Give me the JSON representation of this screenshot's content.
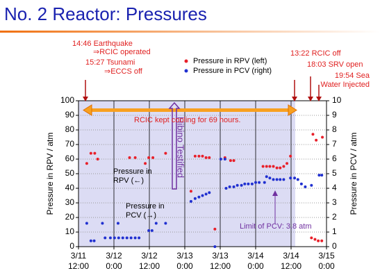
{
  "chart_data": {
    "type": "scatter",
    "title": "No. 2 Reactor:  Pressures",
    "y_label": "Pressure in RPV / atm",
    "y2_label": "Pressure in PCV / atm",
    "xlim": [
      0,
      84
    ],
    "xticks": [
      {
        "value": 0,
        "label": "3/11 12:00"
      },
      {
        "value": 12,
        "label": "3/12 0:00"
      },
      {
        "value": 24,
        "label": "3/12 12:00"
      },
      {
        "value": 36,
        "label": "3/13 0:00"
      },
      {
        "value": 48,
        "label": "3/13 12:00"
      },
      {
        "value": 60,
        "label": "3/14 0:00"
      },
      {
        "value": 72,
        "label": "3/14 12:00"
      },
      {
        "value": 84,
        "label": "3/15 0:00"
      }
    ],
    "ylim": [
      0,
      100
    ],
    "yticks": [
      0,
      10,
      20,
      30,
      40,
      50,
      60,
      70,
      80,
      90,
      100
    ],
    "y2lim": [
      0,
      10
    ],
    "y2ticks": [
      0,
      1,
      2,
      3,
      4,
      5,
      6,
      7,
      8,
      9,
      10
    ],
    "grid": true,
    "series": [
      {
        "name": "Pressure in RPV (left)",
        "color": "#e8202a",
        "x": [
          2.8,
          4.2,
          5.5,
          6.5,
          17.3,
          19.2,
          22.6,
          23.8,
          25.2,
          29.5,
          38.1,
          39.5,
          40.8,
          42,
          43.2,
          44.3,
          46.2,
          49.6,
          51.5,
          52.6,
          62.5,
          63.7,
          64.8,
          66,
          67.2,
          68.3,
          69.5,
          70.6,
          71.8,
          79.4,
          80.5,
          82.6,
          78.9,
          80.1,
          81.2,
          82.4
        ],
        "values": [
          57,
          64,
          64,
          60,
          61,
          61,
          57,
          61,
          61,
          64,
          38,
          62,
          62,
          62,
          61,
          61,
          12,
          61,
          59,
          59,
          55,
          55,
          55,
          55,
          54,
          54,
          55,
          57,
          62,
          77,
          73,
          75,
          6,
          5,
          4,
          4
        ]
      },
      {
        "name": "Pressure in PCV (right)",
        "color": "#2030d0",
        "axis": "y2",
        "x": [
          2.8,
          4.2,
          5.3,
          8.1,
          9,
          10.8,
          12.2,
          13.4,
          13.6,
          15,
          16.4,
          17.8,
          19.2,
          20.5,
          23.8,
          24.9,
          26.3,
          29.5,
          38.1,
          39.5,
          40.8,
          42,
          43.2,
          44.3,
          46.2,
          48.2,
          49.6,
          50,
          51.2,
          52.6,
          53.8,
          55.2,
          56.3,
          57.5,
          58.8,
          60,
          61.2,
          63,
          63.7,
          64.8,
          66,
          67.2,
          68.3,
          69.5,
          71.8,
          73.2,
          74.3,
          75.5,
          76.8,
          78.9,
          81.5,
          82.4
        ],
        "values": [
          1.6,
          0.4,
          0.4,
          1.6,
          0.6,
          0.6,
          0.6,
          1.6,
          0.6,
          0.6,
          0.6,
          0.6,
          0.6,
          0.6,
          1.1,
          1.1,
          1.6,
          1.6,
          3.1,
          3.3,
          3.4,
          3.5,
          3.6,
          3.7,
          0,
          6,
          6,
          4,
          4.1,
          4.1,
          4.2,
          4.2,
          4.3,
          4.3,
          4.3,
          4.4,
          4.4,
          4.4,
          4.8,
          4.7,
          4.6,
          4.6,
          4.6,
          4.6,
          4.7,
          4.7,
          4.6,
          4.3,
          4.1,
          4.2,
          4.9,
          4.9
        ]
      }
    ],
    "annotations": [
      "14:46 Earthquake",
      "⇒RCIC operated",
      "15:27 Tsunami",
      "⇒ECCS off",
      "13:22 RCIC off",
      "18:03 SRV open",
      "19:54 Sea Water Injected",
      "RCIC kept cooling for 69 hours.",
      "Hibino Testified",
      "Pressure in RPV (←)",
      "Pressure in PCV (→)",
      "Limit of PCV: 3.8 atm"
    ]
  }
}
